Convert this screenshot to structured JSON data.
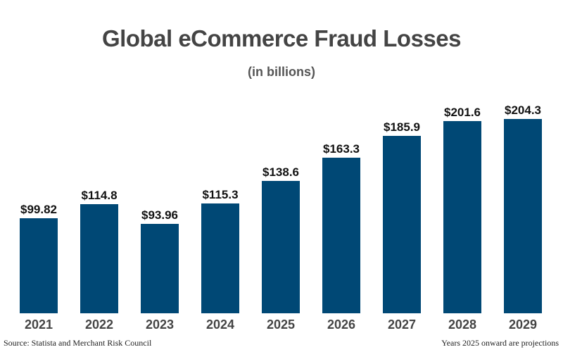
{
  "header": {
    "title": "Global eCommerce Fraud Losses",
    "subtitle": "(in billions)"
  },
  "footer": {
    "source": "Source: Statista and Merchant Risk Council",
    "note": "Years 2025 onward are projections"
  },
  "bars": [
    {
      "year": "2021",
      "label": "$99.82",
      "value": 99.82
    },
    {
      "year": "2022",
      "label": "$114.8",
      "value": 114.8
    },
    {
      "year": "2023",
      "label": "$93.96",
      "value": 93.96
    },
    {
      "year": "2024",
      "label": "$115.3",
      "value": 115.3
    },
    {
      "year": "2025",
      "label": "$138.6",
      "value": 138.6
    },
    {
      "year": "2026",
      "label": "$163.3",
      "value": 163.3
    },
    {
      "year": "2027",
      "label": "$185.9",
      "value": 185.9
    },
    {
      "year": "2028",
      "label": "$201.6",
      "value": 201.6
    },
    {
      "year": "2029",
      "label": "$204.3",
      "value": 204.3
    }
  ],
  "colors": {
    "bar": "#004875"
  },
  "chart_data": {
    "type": "bar",
    "title": "Global eCommerce Fraud Losses",
    "subtitle": "(in billions)",
    "categories": [
      "2021",
      "2022",
      "2023",
      "2024",
      "2025",
      "2026",
      "2027",
      "2028",
      "2029"
    ],
    "values": [
      99.82,
      114.8,
      93.96,
      115.3,
      138.6,
      163.3,
      185.9,
      201.6,
      204.3
    ],
    "data_labels": [
      "$99.82",
      "$114.8",
      "$93.96",
      "$115.3",
      "$138.6",
      "$163.3",
      "$185.9",
      "$201.6",
      "$204.3"
    ],
    "xlabel": "",
    "ylabel": "",
    "grid": false,
    "legend": "none",
    "annotations": [
      "Source: Statista and Merchant Risk Council",
      "Years 2025 onward are projections"
    ]
  }
}
